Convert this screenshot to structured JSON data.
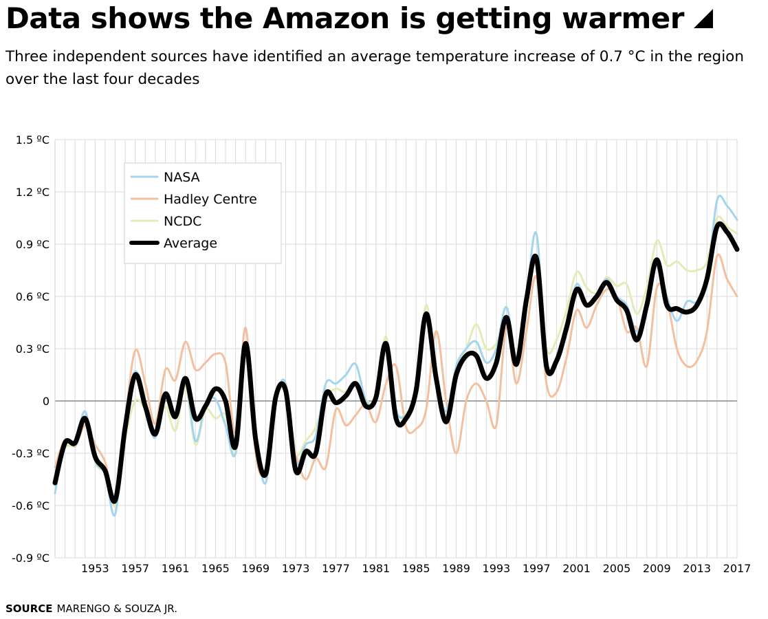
{
  "header": {
    "title": "Data shows the Amazon is getting warmer",
    "subtitle": "Three independent sources have identified an average temperature increase of 0.7 °C in the region over the last four decades"
  },
  "footer": {
    "source_label": "SOURCE",
    "source_text": "MARENGO & SOUZA JR."
  },
  "chart_data": {
    "type": "line",
    "title": "Data shows the Amazon is getting warmer",
    "xlabel": "",
    "ylabel": "",
    "xlim": [
      1949,
      2017
    ],
    "ylim": [
      -0.9,
      1.5
    ],
    "x_ticks": [
      1953,
      1957,
      1961,
      1965,
      1969,
      1973,
      1977,
      1981,
      1985,
      1989,
      1993,
      1997,
      2001,
      2005,
      2009,
      2013,
      2017
    ],
    "y_ticks": [
      {
        "value": 1.5,
        "label": "1.5 ºC"
      },
      {
        "value": 1.2,
        "label": "1.2 ºC"
      },
      {
        "value": 0.9,
        "label": "0.9 ºC"
      },
      {
        "value": 0.6,
        "label": "0.6 ºC"
      },
      {
        "value": 0.3,
        "label": "0.3 ºC"
      },
      {
        "value": 0,
        "label": "0"
      },
      {
        "value": -0.3,
        "label": "-0.3 ºC"
      },
      {
        "value": -0.6,
        "label": "-0.6 ºC"
      },
      {
        "value": -0.9,
        "label": "-0.9 ºC"
      }
    ],
    "grid": true,
    "zero_line": true,
    "legend_position": "top-left",
    "x": [
      1949,
      1950,
      1951,
      1952,
      1953,
      1954,
      1955,
      1956,
      1957,
      1958,
      1959,
      1960,
      1961,
      1962,
      1963,
      1964,
      1965,
      1966,
      1967,
      1968,
      1969,
      1970,
      1971,
      1972,
      1973,
      1974,
      1975,
      1976,
      1977,
      1978,
      1979,
      1980,
      1981,
      1982,
      1983,
      1984,
      1985,
      1986,
      1987,
      1988,
      1989,
      1990,
      1991,
      1992,
      1993,
      1994,
      1995,
      1996,
      1997,
      1998,
      1999,
      2000,
      2001,
      2002,
      2003,
      2004,
      2005,
      2006,
      2007,
      2008,
      2009,
      2010,
      2011,
      2012,
      2013,
      2014,
      2015,
      2016,
      2017
    ],
    "series": [
      {
        "name": "NASA",
        "color": "#a4d5ee",
        "width": 3,
        "values": [
          -0.53,
          -0.24,
          -0.25,
          -0.06,
          -0.34,
          -0.42,
          -0.65,
          -0.1,
          0.17,
          -0.05,
          -0.21,
          0.05,
          -0.08,
          0.12,
          -0.23,
          -0.02,
          0.01,
          -0.14,
          -0.3,
          0.31,
          -0.2,
          -0.47,
          0.0,
          0.1,
          -0.35,
          -0.25,
          -0.2,
          0.1,
          0.1,
          0.15,
          0.21,
          0.0,
          0.0,
          0.33,
          -0.05,
          -0.08,
          0.05,
          0.5,
          0.15,
          -0.06,
          0.2,
          0.3,
          0.34,
          0.22,
          0.3,
          0.54,
          0.25,
          0.6,
          0.96,
          0.22,
          0.25,
          0.42,
          0.67,
          0.55,
          0.6,
          0.7,
          0.6,
          0.55,
          0.4,
          0.55,
          0.82,
          0.6,
          0.46,
          0.57,
          0.57,
          0.7,
          1.15,
          1.12,
          1.04
        ]
      },
      {
        "name": "Hadley Centre",
        "color": "#f4bf9e",
        "width": 3,
        "values": [
          -0.38,
          -0.22,
          -0.26,
          -0.14,
          -0.25,
          -0.35,
          -0.55,
          -0.1,
          0.29,
          0.1,
          -0.13,
          0.18,
          0.12,
          0.34,
          0.18,
          0.22,
          0.27,
          0.22,
          -0.18,
          0.42,
          -0.3,
          -0.4,
          0.02,
          0.04,
          -0.3,
          -0.45,
          -0.33,
          -0.38,
          -0.05,
          -0.14,
          -0.08,
          -0.02,
          -0.12,
          0.1,
          0.2,
          -0.15,
          -0.16,
          -0.05,
          0.4,
          0.0,
          -0.3,
          0.0,
          0.1,
          0.0,
          -0.14,
          0.42,
          0.1,
          0.4,
          0.71,
          0.1,
          0.05,
          0.25,
          0.52,
          0.42,
          0.55,
          0.64,
          0.6,
          0.4,
          0.42,
          0.2,
          0.65,
          0.58,
          0.3,
          0.2,
          0.23,
          0.4,
          0.83,
          0.7,
          0.6
        ]
      },
      {
        "name": "NCDC",
        "color": "#e3ecb8",
        "width": 3,
        "values": [
          -0.45,
          -0.27,
          -0.25,
          -0.1,
          -0.35,
          -0.42,
          -0.6,
          -0.22,
          0.0,
          -0.05,
          -0.17,
          -0.03,
          -0.17,
          0.08,
          -0.25,
          -0.05,
          -0.1,
          -0.08,
          -0.3,
          0.25,
          -0.18,
          -0.4,
          0.0,
          0.05,
          -0.3,
          -0.23,
          -0.15,
          0.02,
          0.07,
          0.05,
          0.11,
          0.01,
          0.0,
          0.37,
          -0.05,
          -0.07,
          0.05,
          0.55,
          0.15,
          -0.08,
          0.2,
          0.3,
          0.44,
          0.3,
          0.33,
          0.45,
          0.25,
          0.58,
          0.78,
          0.3,
          0.35,
          0.52,
          0.74,
          0.65,
          0.62,
          0.71,
          0.66,
          0.67,
          0.5,
          0.65,
          0.92,
          0.78,
          0.8,
          0.75,
          0.75,
          0.8,
          1.05,
          1.0,
          0.96
        ]
      },
      {
        "name": "Average",
        "color": "#000000",
        "width": 7,
        "values": [
          -0.47,
          -0.24,
          -0.24,
          -0.1,
          -0.32,
          -0.4,
          -0.57,
          -0.15,
          0.15,
          -0.03,
          -0.19,
          0.04,
          -0.09,
          0.13,
          -0.1,
          -0.03,
          0.07,
          0.0,
          -0.26,
          0.33,
          -0.22,
          -0.42,
          0.02,
          0.06,
          -0.4,
          -0.29,
          -0.3,
          0.04,
          -0.01,
          0.03,
          0.1,
          -0.03,
          0.02,
          0.33,
          -0.1,
          -0.1,
          0.06,
          0.5,
          0.13,
          -0.12,
          0.15,
          0.26,
          0.26,
          0.13,
          0.22,
          0.48,
          0.21,
          0.58,
          0.82,
          0.2,
          0.23,
          0.42,
          0.64,
          0.55,
          0.6,
          0.68,
          0.58,
          0.52,
          0.35,
          0.55,
          0.81,
          0.55,
          0.53,
          0.51,
          0.55,
          0.7,
          1.0,
          0.97,
          0.87
        ]
      }
    ]
  }
}
